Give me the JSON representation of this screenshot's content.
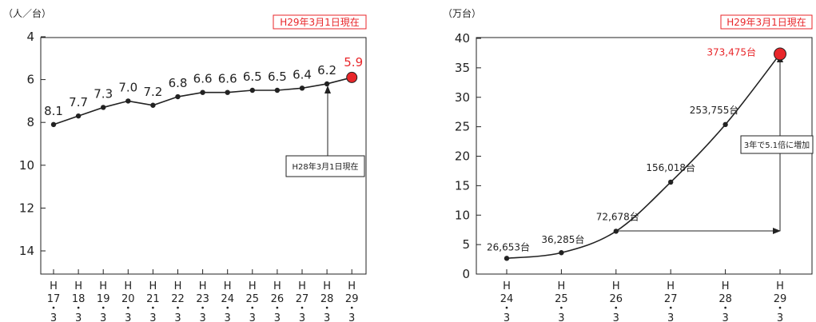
{
  "chart_data": [
    {
      "type": "line",
      "title": "",
      "ylabel": "（人／台）",
      "xlabel": "",
      "badge": "H29年3月1日現在",
      "annotation": "H28年3月1日現在",
      "y_inverted": true,
      "ylim": [
        4,
        15
      ],
      "yticks": [
        "4",
        "6",
        "8",
        "10",
        "12",
        "14"
      ],
      "categories": [
        [
          "H",
          "17",
          "・",
          "3"
        ],
        [
          "H",
          "18",
          "・",
          "3"
        ],
        [
          "H",
          "19",
          "・",
          "3"
        ],
        [
          "H",
          "20",
          "・",
          "3"
        ],
        [
          "H",
          "21",
          "・",
          "3"
        ],
        [
          "H",
          "22",
          "・",
          "3"
        ],
        [
          "H",
          "23",
          "・",
          "3"
        ],
        [
          "H",
          "24",
          "・",
          "3"
        ],
        [
          "H",
          "25",
          "・",
          "3"
        ],
        [
          "H",
          "26",
          "・",
          "3"
        ],
        [
          "H",
          "27",
          "・",
          "3"
        ],
        [
          "H",
          "28",
          "・",
          "3"
        ],
        [
          "H",
          "29",
          "・",
          "3"
        ]
      ],
      "values": [
        8.1,
        7.7,
        7.3,
        7.0,
        7.2,
        6.8,
        6.6,
        6.6,
        6.5,
        6.5,
        6.4,
        6.2,
        5.9
      ],
      "data_labels": [
        "8.1",
        "7.7",
        "7.3",
        "7.0",
        "7.2",
        "6.8",
        "6.6",
        "6.6",
        "6.5",
        "6.5",
        "6.4",
        "6.2",
        "5.9"
      ],
      "highlight_last": true,
      "highlight_color": "#e8262a",
      "line_color": "#222222"
    },
    {
      "type": "line",
      "title": "",
      "ylabel": "（万台）",
      "xlabel": "",
      "badge": "H29年3月1日現在",
      "annotation": "3年で5.1倍に増加",
      "y_inverted": false,
      "ylim": [
        0,
        40
      ],
      "yticks": [
        "0",
        "5",
        "10",
        "15",
        "20",
        "25",
        "30",
        "35",
        "40"
      ],
      "categories": [
        [
          "H",
          "24",
          "・",
          "3"
        ],
        [
          "H",
          "25",
          "・",
          "3"
        ],
        [
          "H",
          "26",
          "・",
          "3"
        ],
        [
          "H",
          "27",
          "・",
          "3"
        ],
        [
          "H",
          "28",
          "・",
          "3"
        ],
        [
          "H",
          "29",
          "・",
          "3"
        ]
      ],
      "values": [
        2.6653,
        3.6285,
        7.2678,
        15.6018,
        25.3755,
        37.3475
      ],
      "data_labels": [
        "26,653台",
        "36,285台",
        "72,678台",
        "156,018台",
        "253,755台",
        "373,475台"
      ],
      "highlight_last": true,
      "highlight_color": "#e8262a",
      "line_color": "#222222"
    }
  ]
}
